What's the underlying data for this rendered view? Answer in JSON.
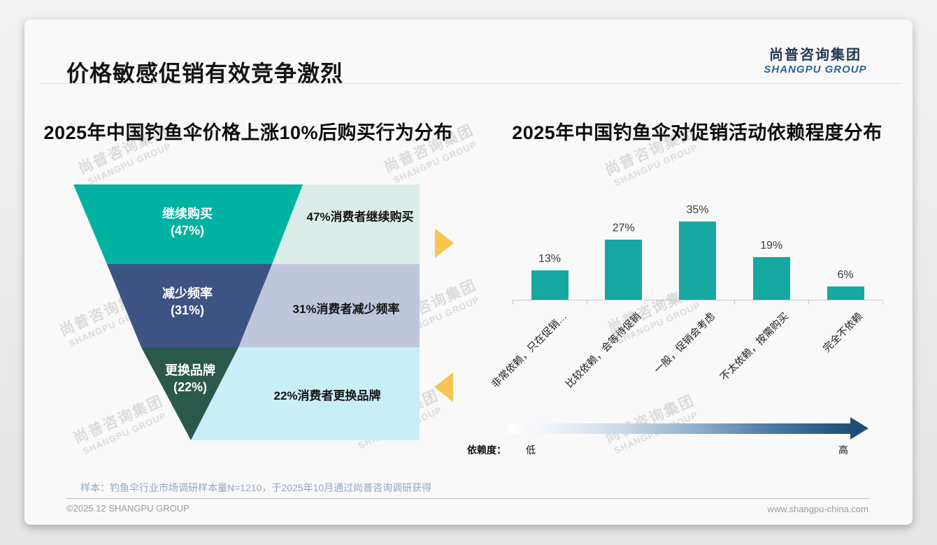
{
  "header": {
    "title": "价格敏感促销有效竞争激烈",
    "logo_cn": "尚普咨询集团",
    "logo_en": "SHANGPU GROUP"
  },
  "watermark": {
    "cn": "尚普咨询集团",
    "en": "SHANGPU GROUP"
  },
  "chart_data": [
    {
      "type": "funnel",
      "title": "2025年中国钓鱼伞价格上涨10%后购买行为分布",
      "categories": [
        "继续购买",
        "减少频率",
        "更换品牌"
      ],
      "values": [
        47,
        31,
        22
      ],
      "tiers": [
        {
          "label": "继续购买",
          "pct_label": "(47%)",
          "value": 47,
          "annotation": "47%消费者继续购买",
          "color": "#00b2a2",
          "annotation_bg": "#dcede9"
        },
        {
          "label": "减少频率",
          "pct_label": "(31%)",
          "value": 31,
          "annotation": "31%消费者减少频率",
          "color": "#3d5384",
          "annotation_bg": "#bfc6dc"
        },
        {
          "label": "更换品牌",
          "pct_label": "(22%)",
          "value": 22,
          "annotation": "22%消费者更换品牌",
          "color": "#2a594b",
          "annotation_bg": "#c9eef7"
        }
      ],
      "arrow_color": "#f7c64f",
      "legend_position": "none"
    },
    {
      "type": "bar",
      "title": "2025年中国钓鱼伞对促销活动依赖程度分布",
      "categories": [
        "非常依赖，只在促销…",
        "比较依赖，会等待促销",
        "一般，促销会考虑",
        "不太依赖，按需购买",
        "完全不依赖"
      ],
      "values": [
        13,
        27,
        35,
        19,
        6
      ],
      "value_labels": [
        "13%",
        "27%",
        "35%",
        "19%",
        "6%"
      ],
      "bar_color": "#18a8a2",
      "ylim": [
        0,
        40
      ],
      "grid": false,
      "dependence_legend": {
        "label": "依赖度：",
        "low": "低",
        "high": "高"
      }
    }
  ],
  "footer": {
    "sample_note": "样本：钓鱼伞行业市场调研样本量N=1210，于2025年10月通过尚普咨询调研获得",
    "copyright": "©2025.12 SHANGPU GROUP",
    "website": "www.shangpu-china.com"
  }
}
